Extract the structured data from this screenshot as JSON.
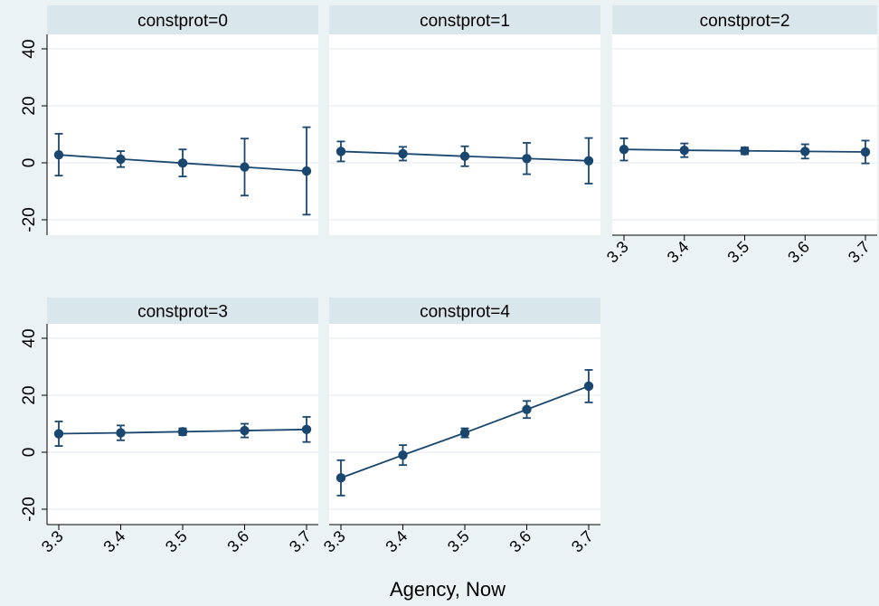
{
  "chart_data": {
    "type": "line",
    "xlabel": "Agency, Now",
    "ylabel": "",
    "x_ticks": [
      "3.3",
      "3.4",
      "3.5",
      "3.6",
      "3.7"
    ],
    "y_ticks": [
      "-20",
      "0",
      "20",
      "40"
    ],
    "xlim": [
      3.3,
      3.7
    ],
    "ylim": [
      -24,
      44
    ],
    "grid": true,
    "colors": {
      "series": "#1a476f",
      "panel_header": "#d9e6eb",
      "plot_bg": "#ffffff",
      "figure_bg": "#eaf2f3",
      "grid": "#e7eef1"
    },
    "panels": [
      {
        "title": "constprot=0",
        "x": [
          3.3,
          3.4,
          3.5,
          3.6,
          3.7
        ],
        "y": [
          2.8,
          1.3,
          -0.1,
          -1.5,
          -2.9
        ],
        "ci_low": [
          -4.5,
          -1.5,
          -4.8,
          -11.5,
          -18.2
        ],
        "ci_high": [
          10.2,
          4.1,
          4.7,
          8.5,
          12.5
        ]
      },
      {
        "title": "constprot=1",
        "x": [
          3.3,
          3.4,
          3.5,
          3.6,
          3.7
        ],
        "y": [
          4.0,
          3.2,
          2.3,
          1.5,
          0.7
        ],
        "ci_low": [
          0.5,
          0.8,
          -1.2,
          -4.0,
          -7.3
        ],
        "ci_high": [
          7.5,
          5.6,
          5.8,
          7.0,
          8.7
        ]
      },
      {
        "title": "constprot=2",
        "x": [
          3.3,
          3.4,
          3.5,
          3.6,
          3.7
        ],
        "y": [
          4.7,
          4.4,
          4.2,
          4.0,
          3.8
        ],
        "ci_low": [
          0.8,
          2.0,
          3.0,
          1.5,
          -0.2
        ],
        "ci_high": [
          8.6,
          6.8,
          5.4,
          6.5,
          7.8
        ]
      },
      {
        "title": "constprot=3",
        "x": [
          3.3,
          3.4,
          3.5,
          3.6,
          3.7
        ],
        "y": [
          6.5,
          6.8,
          7.2,
          7.6,
          8.0
        ],
        "ci_low": [
          2.2,
          4.2,
          6.0,
          5.2,
          3.6
        ],
        "ci_high": [
          10.8,
          9.4,
          8.4,
          10.0,
          12.4
        ]
      },
      {
        "title": "constprot=4",
        "x": [
          3.3,
          3.4,
          3.5,
          3.6,
          3.7
        ],
        "y": [
          -9.0,
          -1.0,
          6.8,
          15.0,
          23.2
        ],
        "ci_low": [
          -15.2,
          -4.5,
          5.2,
          12.0,
          17.5
        ],
        "ci_high": [
          -2.8,
          2.5,
          8.4,
          18.0,
          28.9
        ]
      }
    ]
  }
}
